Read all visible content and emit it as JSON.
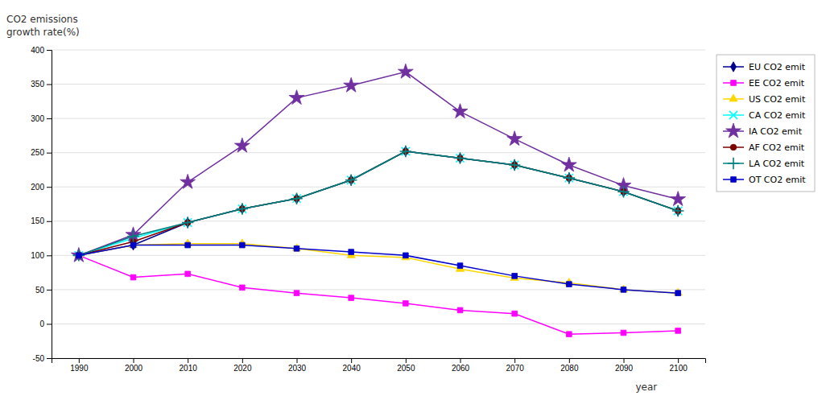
{
  "chart_data": {
    "type": "line",
    "x": [
      1990,
      2000,
      2010,
      2020,
      2030,
      2040,
      2050,
      2060,
      2070,
      2080,
      2090,
      2100
    ],
    "series": [
      {
        "name": "EU CO2 emit",
        "color": "#00008B",
        "marker": "diamond",
        "line_style": "solid",
        "values": [
          100,
          115,
          148,
          168,
          183,
          210,
          252,
          242,
          232,
          213,
          193,
          165
        ]
      },
      {
        "name": "EE CO2 emit",
        "color": "#FF00FF",
        "marker": "square",
        "line_style": "solid",
        "values": [
          100,
          68,
          73,
          53,
          45,
          38,
          30,
          20,
          15,
          -15,
          -13,
          -10
        ]
      },
      {
        "name": "US CO2 emit",
        "color": "#FFD700",
        "marker": "triangle",
        "line_style": "solid",
        "values": [
          100,
          115,
          117,
          117,
          110,
          100,
          97,
          80,
          67,
          60,
          50,
          45
        ]
      },
      {
        "name": "CA CO2 emit",
        "color": "#00FFFF",
        "marker": "x",
        "line_style": "solid",
        "values": [
          100,
          125,
          148,
          168,
          183,
          210,
          252,
          242,
          232,
          213,
          193,
          165
        ]
      },
      {
        "name": "IA CO2 emit",
        "color": "#7030A0",
        "marker": "star",
        "line_style": "solid",
        "values": [
          100,
          130,
          207,
          260,
          330,
          348,
          368,
          310,
          270,
          232,
          202,
          182
        ]
      },
      {
        "name": "AF CO2 emit",
        "color": "#7B0000",
        "marker": "circle",
        "line_style": "solid",
        "values": [
          100,
          120,
          148,
          168,
          183,
          210,
          252,
          242,
          232,
          213,
          193,
          165
        ]
      },
      {
        "name": "LA CO2 emit",
        "color": "#008080",
        "marker": "plus",
        "line_style": "solid",
        "values": [
          100,
          128,
          148,
          168,
          183,
          210,
          252,
          242,
          232,
          213,
          193,
          165
        ]
      },
      {
        "name": "OT CO2 emit",
        "color": "#0000CD",
        "marker": "square",
        "line_style": "solid",
        "values": [
          100,
          115,
          115,
          115,
          110,
          105,
          100,
          85,
          70,
          58,
          50,
          45
        ]
      }
    ],
    "ylabel": "CO2 emissions\ngrowth rate(%)",
    "xlabel": "year",
    "xlim": [
      1985,
      2105
    ],
    "xticks": [
      1990,
      2000,
      2010,
      2020,
      2030,
      2040,
      2050,
      2060,
      2070,
      2080,
      2090,
      2100
    ],
    "ylim": [
      -50,
      400
    ],
    "yticks": [
      -50,
      0,
      50,
      100,
      150,
      200,
      250,
      300,
      350,
      400
    ],
    "grid": "y",
    "legend": "right"
  }
}
